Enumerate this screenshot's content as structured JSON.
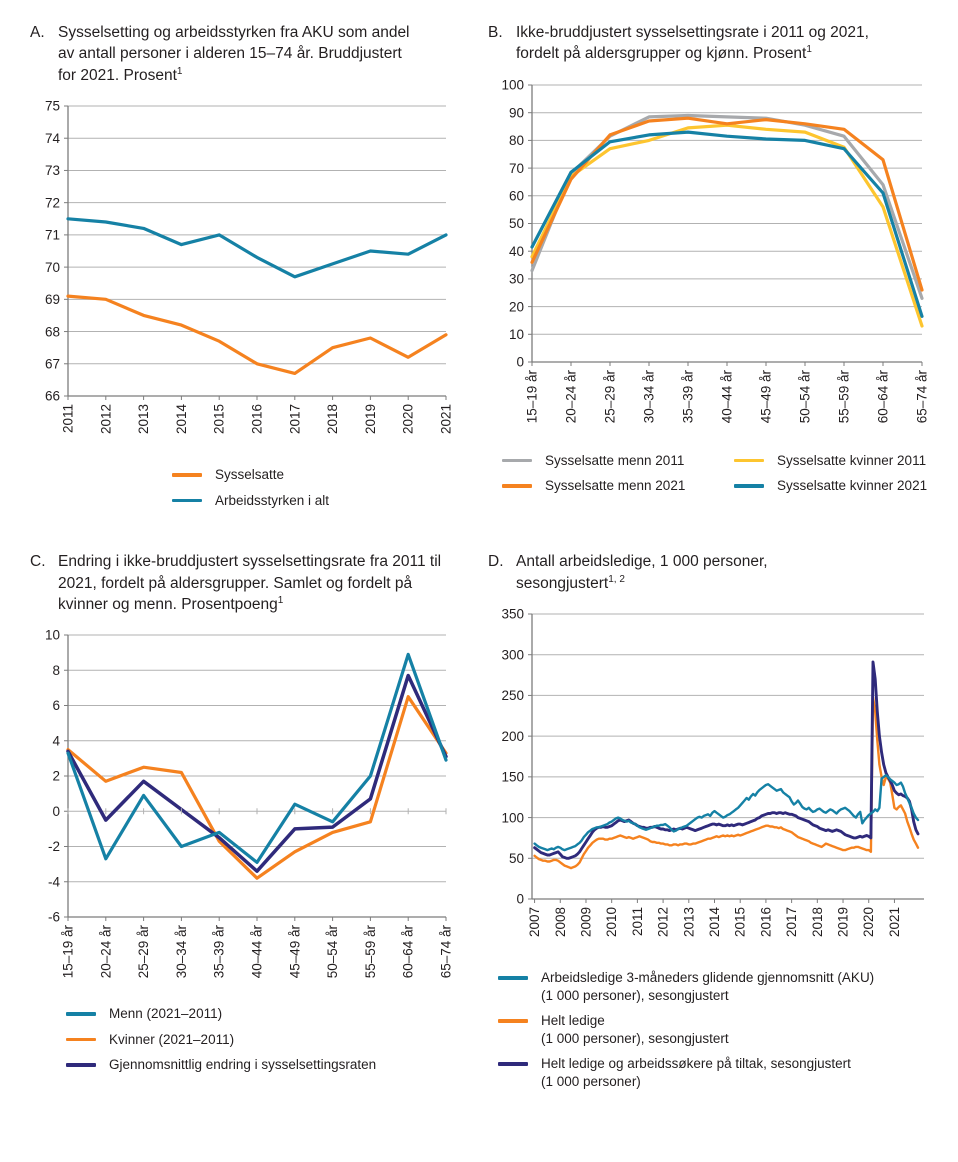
{
  "colors": {
    "teal": "#1581a5",
    "orange": "#f5821f",
    "grey": "#a7a9ac",
    "yellow": "#fdc52f",
    "navy": "#2f2a7b",
    "grid": "#b2b2b2",
    "axis": "#7c7c7c",
    "text": "#231f20"
  },
  "chart_data": [
    {
      "panel_label": "A.",
      "title": "Sysselsetting og arbeidsstyrken fra AKU som andel av antall personer i alderen 15–74 år. Bruddjustert for 2021. Prosent",
      "footnote": "1",
      "type": "line",
      "categories": [
        "2011",
        "2012",
        "2013",
        "2014",
        "2015",
        "2016",
        "2017",
        "2018",
        "2019",
        "2020",
        "2021"
      ],
      "ylim": [
        66,
        75
      ],
      "ytick_step": 1,
      "grid": true,
      "legend_position": "bottom",
      "series": [
        {
          "name": "Sysselsatte",
          "color_key": "orange",
          "values": [
            69.1,
            69.0,
            68.5,
            68.2,
            67.7,
            67.0,
            66.7,
            67.5,
            67.8,
            67.2,
            67.9
          ]
        },
        {
          "name": "Arbeidsstyrken i alt",
          "color_key": "teal",
          "values": [
            71.5,
            71.4,
            71.2,
            70.7,
            71.0,
            70.3,
            69.7,
            70.1,
            70.5,
            70.4,
            71.0
          ]
        }
      ],
      "legend": {
        "items": [
          {
            "lines": [
              "Sysselsatte"
            ],
            "color_key": "orange"
          },
          {
            "lines": [
              "Arbeidsstyrken i alt"
            ],
            "color_key": "teal"
          }
        ]
      }
    },
    {
      "panel_label": "B.",
      "title": "Ikke-bruddjustert sysselsettingsrate i 2011 og 2021, fordelt på aldersgrupper og kjønn. Prosent",
      "footnote": "1",
      "type": "line",
      "categories": [
        "15–19 år",
        "20–24 år",
        "25–29 år",
        "30–34 år",
        "35–39 år",
        "40–44 år",
        "45–49 år",
        "50–54 år",
        "55–59 år",
        "60–64 år",
        "65–74 år"
      ],
      "ylim": [
        0,
        100
      ],
      "ytick_step": 10,
      "grid": true,
      "legend_position": "bottom",
      "series": [
        {
          "name": "Sysselsatte menn 2011",
          "color_key": "grey",
          "values": [
            33,
            68,
            81.5,
            88.5,
            89,
            88.5,
            88,
            85.5,
            81.5,
            64,
            23
          ]
        },
        {
          "name": "Sysselsatte kvinner 2011",
          "color_key": "yellow",
          "values": [
            38,
            67,
            77,
            80,
            84.5,
            85.5,
            84,
            83,
            77.5,
            56,
            13
          ]
        },
        {
          "name": "Sysselsatte menn 2021",
          "color_key": "orange",
          "values": [
            36,
            66,
            82,
            87,
            88,
            86,
            87.5,
            86,
            84,
            73,
            26
          ]
        },
        {
          "name": "Sysselsatte kvinner 2021",
          "color_key": "teal",
          "values": [
            41.5,
            68.5,
            79.5,
            82,
            83,
            81.5,
            80.5,
            80,
            77,
            61,
            16.5
          ]
        }
      ],
      "legend": {
        "items": [
          {
            "lines": [
              "Sysselsatte menn 2011"
            ],
            "color_key": "grey"
          },
          {
            "lines": [
              "Sysselsatte kvinner 2011"
            ],
            "color_key": "yellow"
          },
          {
            "lines": [
              "Sysselsatte menn 2021"
            ],
            "color_key": "orange"
          },
          {
            "lines": [
              "Sysselsatte kvinner 2021"
            ],
            "color_key": "teal"
          }
        ]
      }
    },
    {
      "panel_label": "C.",
      "title": "Endring i ikke-bruddjustert sysselsettingsrate fra 2011 til 2021, fordelt på aldersgrupper. Samlet og fordelt på kvinner og menn. Prosentpoeng",
      "footnote": "1",
      "type": "line",
      "categories": [
        "15–19 år",
        "20–24 år",
        "25–29 år",
        "30–34 år",
        "35–39 år",
        "40–44 år",
        "45–49 år",
        "50–54 år",
        "55–59 år",
        "60–64 år",
        "65–74 år"
      ],
      "ylim": [
        -6,
        10
      ],
      "ytick_step": 2,
      "grid": true,
      "zero_ticks": true,
      "legend_position": "bottom",
      "series": [
        {
          "name": "Kvinner (2021–2011)",
          "color_key": "orange",
          "values": [
            3.5,
            1.7,
            2.5,
            2.2,
            -1.7,
            -3.8,
            -2.3,
            -1.2,
            -0.6,
            6.5,
            3.3
          ]
        },
        {
          "name": "Gjennomsnittlig endring i sysselsettingsraten",
          "color_key": "navy",
          "width": 3.5,
          "values": [
            3.4,
            -0.5,
            1.7,
            0.1,
            -1.5,
            -3.4,
            -1.0,
            -0.9,
            0.7,
            7.7,
            3.1
          ]
        },
        {
          "name": "Menn (2021–2011)",
          "color_key": "teal",
          "values": [
            3.3,
            -2.7,
            0.9,
            -2.0,
            -1.2,
            -2.9,
            0.4,
            -0.6,
            2.0,
            8.9,
            2.9
          ]
        }
      ],
      "legend": {
        "items": [
          {
            "lines": [
              "Menn (2021–2011)"
            ],
            "color_key": "teal"
          },
          {
            "lines": [
              "Kvinner (2021–2011)"
            ],
            "color_key": "orange"
          },
          {
            "lines": [
              "Gjennomsnittlig endring i sysselsettingsraten"
            ],
            "color_key": "navy"
          }
        ]
      }
    },
    {
      "panel_label": "D.",
      "title": "Antall arbeidsledige, 1 000 personer, sesongjustert",
      "footnote": "1, 2",
      "type": "line",
      "x_monthly": true,
      "x_start": 2007,
      "xlim": [
        2006.9,
        2022.15
      ],
      "xticks": [
        "2007",
        "2008",
        "2009",
        "2010",
        "2011",
        "2012",
        "2013",
        "2014",
        "2015",
        "2016",
        "2017",
        "2018",
        "2019",
        "2020",
        "2021"
      ],
      "ylim": [
        0,
        350
      ],
      "ytick_step": 50,
      "grid": true,
      "legend_position": "bottom",
      "series": [
        {
          "name": "Helt ledige (1 000 personer), sesongjustert",
          "color_key": "orange",
          "width": 2.4,
          "values": [
            53,
            51,
            49,
            48,
            47,
            47,
            46,
            46,
            47,
            48,
            48,
            47,
            45,
            43,
            41,
            40,
            39,
            38,
            39,
            40,
            42,
            45,
            50,
            55,
            59,
            63,
            66,
            69,
            71,
            73,
            74,
            74,
            74,
            73,
            73,
            74,
            74,
            75,
            76,
            77,
            78,
            77,
            76,
            75,
            76,
            75,
            74,
            75,
            76,
            77,
            76,
            75,
            74,
            73,
            71,
            70,
            70,
            69,
            69,
            68,
            68,
            67,
            67,
            66,
            66,
            67,
            67,
            66,
            67,
            67,
            68,
            68,
            67,
            67,
            68,
            68,
            69,
            70,
            71,
            72,
            73,
            74,
            74,
            75,
            76,
            77,
            76,
            77,
            78,
            77,
            78,
            77,
            78,
            77,
            78,
            79,
            78,
            79,
            80,
            81,
            82,
            83,
            84,
            85,
            86,
            87,
            88,
            89,
            90,
            90,
            89,
            89,
            88,
            88,
            87,
            88,
            86,
            85,
            84,
            83,
            82,
            80,
            78,
            76,
            75,
            74,
            73,
            72,
            71,
            69,
            68,
            67,
            66,
            65,
            64,
            66,
            68,
            67,
            66,
            65,
            64,
            63,
            62,
            61,
            60,
            60,
            61,
            62,
            63,
            63,
            64,
            64,
            63,
            62,
            61,
            60,
            60,
            58,
            248,
            230,
            195,
            165,
            150,
            140,
            150,
            148,
            143,
            128,
            112,
            110,
            113,
            115,
            110,
            105,
            95,
            88,
            80,
            73,
            68,
            63
          ]
        },
        {
          "name": "Helt ledige og arbeidssøkere på tiltak, sesongjustert (1 000 personer)",
          "color_key": "navy",
          "width": 2.9,
          "values": [
            63,
            61,
            59,
            57,
            56,
            55,
            54,
            54,
            55,
            56,
            57,
            58,
            55,
            52,
            51,
            50,
            50,
            51,
            52,
            53,
            55,
            58,
            62,
            66,
            70,
            74,
            78,
            82,
            85,
            87,
            88,
            88,
            89,
            88,
            88,
            89,
            90,
            92,
            94,
            96,
            97,
            96,
            95,
            96,
            97,
            95,
            93,
            92,
            90,
            89,
            88,
            88,
            87,
            87,
            88,
            88,
            89,
            88,
            87,
            86,
            86,
            85,
            85,
            84,
            85,
            86,
            85,
            86,
            87,
            86,
            87,
            88,
            87,
            86,
            85,
            84,
            85,
            86,
            87,
            88,
            89,
            90,
            91,
            92,
            92,
            91,
            92,
            91,
            90,
            90,
            91,
            90,
            91,
            90,
            91,
            92,
            92,
            91,
            92,
            93,
            94,
            95,
            96,
            97,
            99,
            100,
            102,
            103,
            104,
            105,
            105,
            106,
            106,
            105,
            106,
            106,
            105,
            106,
            105,
            104,
            104,
            103,
            102,
            100,
            99,
            98,
            97,
            96,
            95,
            93,
            91,
            90,
            89,
            87,
            86,
            85,
            84,
            85,
            84,
            83,
            84,
            85,
            84,
            83,
            81,
            79,
            78,
            77,
            76,
            75,
            75,
            76,
            77,
            76,
            77,
            78,
            77,
            75,
            291,
            270,
            230,
            200,
            180,
            165,
            155,
            150,
            145,
            140,
            133,
            130,
            128,
            129,
            127,
            126,
            124,
            120,
            110,
            95,
            85,
            80
          ]
        },
        {
          "name": "Arbeidsledige 3-måneders glidende gjennomsnitt (AKU) (1 000 personer), sesongjustert",
          "color_key": "teal",
          "width": 2.4,
          "values": [
            68,
            66,
            64,
            63,
            62,
            61,
            60,
            61,
            62,
            61,
            63,
            64,
            63,
            61,
            60,
            61,
            62,
            63,
            64,
            65,
            67,
            69,
            72,
            76,
            79,
            82,
            84,
            86,
            87,
            88,
            88,
            89,
            90,
            91,
            92,
            94,
            95,
            97,
            99,
            100,
            99,
            97,
            96,
            95,
            96,
            94,
            93,
            92,
            90,
            88,
            87,
            86,
            85,
            86,
            87,
            88,
            89,
            90,
            90,
            91,
            91,
            92,
            90,
            88,
            85,
            83,
            84,
            86,
            87,
            88,
            89,
            90,
            92,
            94,
            96,
            98,
            100,
            101,
            100,
            102,
            103,
            104,
            102,
            106,
            108,
            106,
            104,
            102,
            100,
            101,
            103,
            104,
            106,
            108,
            110,
            112,
            115,
            118,
            121,
            124,
            122,
            126,
            129,
            127,
            131,
            134,
            136,
            138,
            140,
            141,
            139,
            137,
            135,
            133,
            134,
            135,
            131,
            129,
            127,
            125,
            120,
            116,
            118,
            121,
            117,
            113,
            111,
            110,
            112,
            109,
            107,
            108,
            110,
            111,
            109,
            107,
            106,
            108,
            110,
            109,
            107,
            105,
            108,
            110,
            111,
            112,
            110,
            108,
            105,
            102,
            100,
            104,
            107,
            93,
            97,
            100,
            103,
            105,
            107,
            110,
            108,
            112,
            148,
            150,
            152,
            150,
            147,
            145,
            143,
            140,
            141,
            143,
            138,
            130,
            124,
            118,
            112,
            105,
            100,
            97
          ]
        }
      ],
      "legend": {
        "items": [
          {
            "lines": [
              "Arbeidsledige 3-måneders glidende gjennomsnitt (AKU)",
              "(1 000 personer), sesongjustert"
            ],
            "color_key": "teal"
          },
          {
            "lines": [
              "Helt ledige",
              "(1 000 personer), sesongjustert"
            ],
            "color_key": "orange"
          },
          {
            "lines": [
              "Helt ledige og arbeidssøkere på tiltak, sesongjustert",
              "(1 000 personer)"
            ],
            "color_key": "navy"
          }
        ]
      }
    }
  ]
}
